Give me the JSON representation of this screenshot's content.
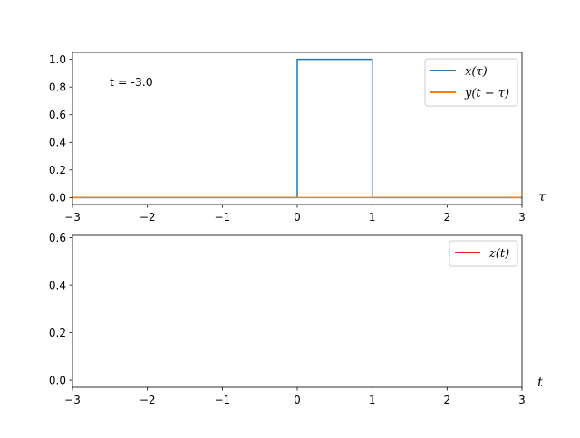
{
  "chart_data": [
    {
      "type": "line",
      "xlim": [
        -3,
        3
      ],
      "ylim": [
        -0.05,
        1.05
      ],
      "xticks": [
        -3,
        -2,
        -1,
        0,
        1,
        2,
        3
      ],
      "xtick_labels": [
        "−3",
        "−2",
        "−1",
        "0",
        "1",
        "2",
        "3"
      ],
      "yticks": [
        0.0,
        0.2,
        0.4,
        0.6,
        0.8,
        1.0
      ],
      "ytick_labels": [
        "0.0",
        "0.2",
        "0.4",
        "0.6",
        "0.8",
        "1.0"
      ],
      "xlabel": "τ",
      "annotation": "t = -3.0",
      "legend_position": "top-right",
      "grid": false,
      "series": [
        {
          "name": "x(τ)",
          "color": "#1f77b4",
          "x": [
            -3,
            0,
            0,
            1,
            1,
            3
          ],
          "y": [
            0,
            0,
            1,
            1,
            0,
            0
          ]
        },
        {
          "name": "y(t − τ)",
          "color": "#ff7f0e",
          "x": [
            -3,
            3
          ],
          "y": [
            0,
            0
          ]
        }
      ]
    },
    {
      "type": "line",
      "xlim": [
        -3,
        3
      ],
      "ylim": [
        -0.03,
        0.61
      ],
      "xticks": [
        -3,
        -2,
        -1,
        0,
        1,
        2,
        3
      ],
      "xtick_labels": [
        "−3",
        "−2",
        "−1",
        "0",
        "1",
        "2",
        "3"
      ],
      "yticks": [
        0.0,
        0.2,
        0.4,
        0.6
      ],
      "ytick_labels": [
        "0.0",
        "0.2",
        "0.4",
        "0.6"
      ],
      "xlabel": "t",
      "legend_position": "top-right",
      "grid": false,
      "series": [
        {
          "name": "z(t)",
          "color": "#d62728",
          "x": [],
          "y": []
        }
      ]
    }
  ]
}
